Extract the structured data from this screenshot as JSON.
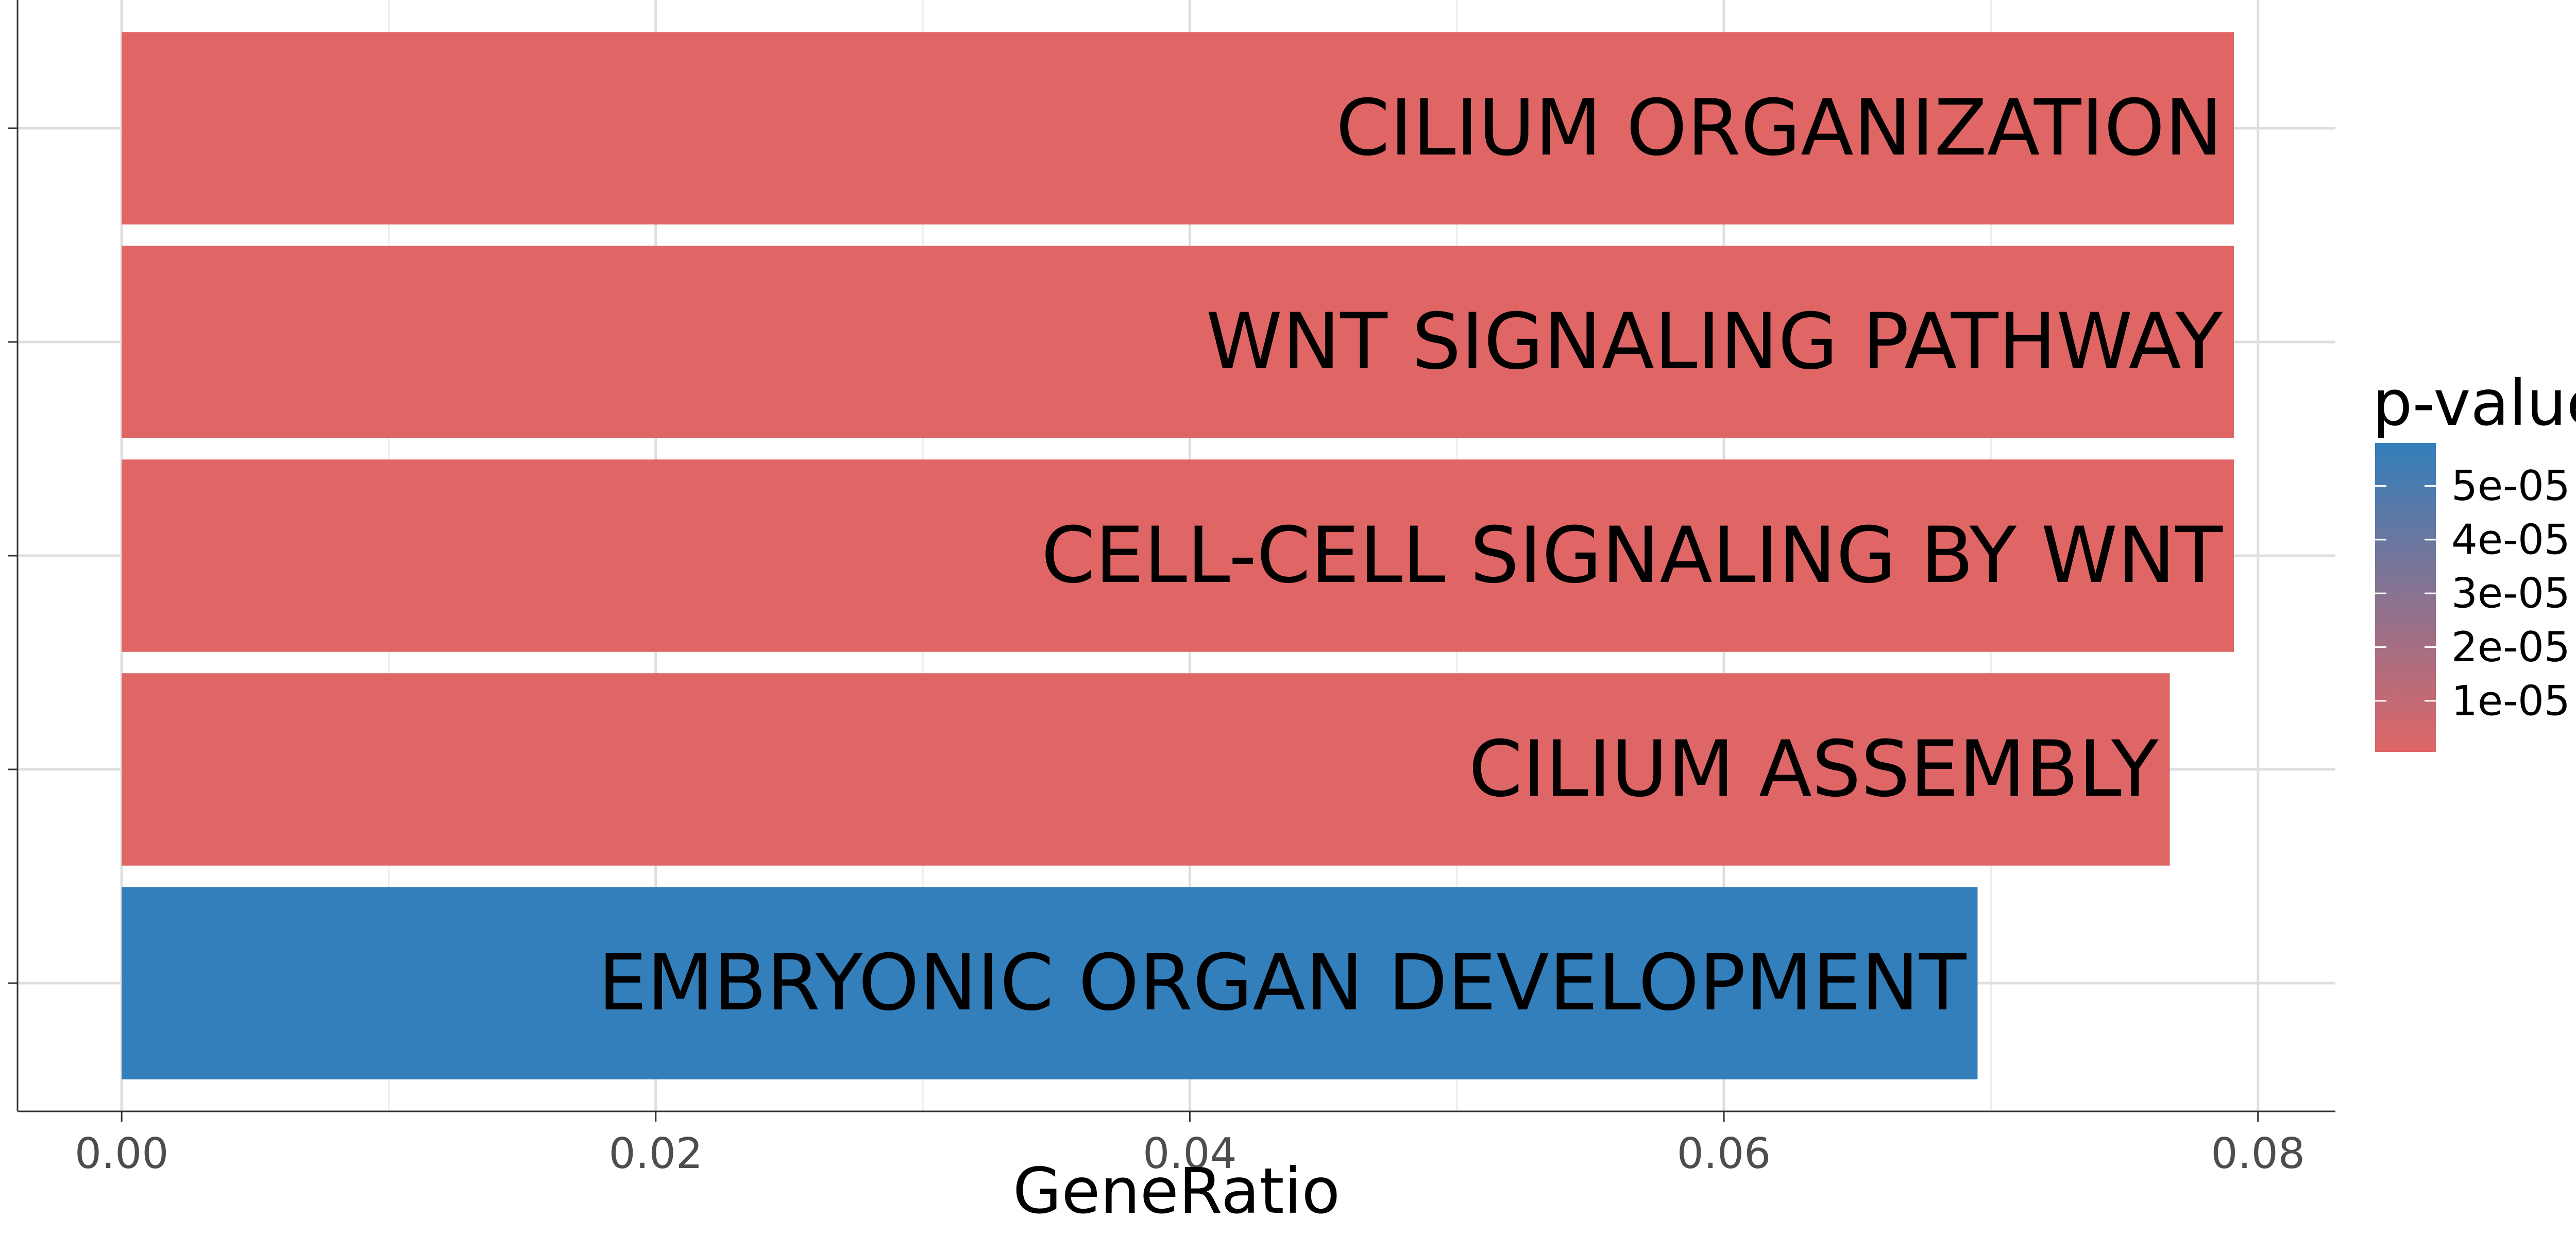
{
  "chart_data": {
    "type": "bar",
    "orientation": "horizontal",
    "categories": [
      "CILIUM ORGANIZATION",
      "WNT SIGNALING PATHWAY",
      "CELL-CELL SIGNALING BY WNT",
      "CILIUM ASSEMBLY",
      "EMBRYONIC ORGAN DEVELOPMENT"
    ],
    "values": [
      0.0791,
      0.0791,
      0.0791,
      0.0767,
      0.0695
    ],
    "p_values": [
      5e-07,
      5e-07,
      5e-07,
      1e-06,
      5.8e-05
    ],
    "title": "",
    "xlabel": "GeneRatio",
    "ylabel": "",
    "xlim": [
      -0.0039,
      0.0829
    ],
    "x_ticks": [
      0.0,
      0.02,
      0.04,
      0.06,
      0.08
    ],
    "x_tick_labels": [
      "0.00",
      "0.02",
      "0.04",
      "0.06",
      "0.08"
    ],
    "grid": true,
    "legend": {
      "title": "p-value",
      "placement": "right",
      "type": "colorbar",
      "range": [
        5e-07,
        5.8e-05
      ],
      "breaks": [
        5e-05,
        4e-05,
        3e-05,
        2e-05,
        1e-05
      ],
      "break_labels": [
        "5e-05",
        "4e-05",
        "3e-05",
        "2e-05",
        "1e-05"
      ],
      "low_color": "#e06666",
      "high_color": "#337fbb"
    }
  }
}
